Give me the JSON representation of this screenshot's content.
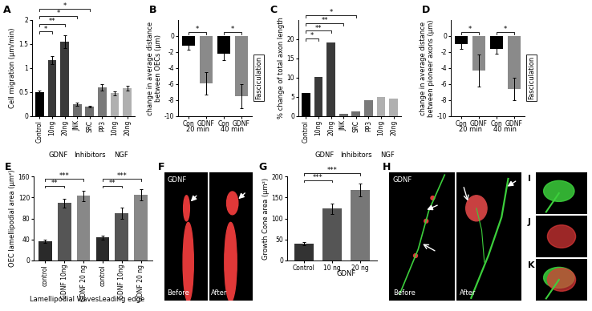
{
  "chart_data": [
    {
      "panel": "A",
      "type": "bar",
      "ylabel": "Cell migration (µm/min)",
      "categories": [
        "Control",
        "10ng",
        "20ng",
        "JNK",
        "SRC",
        "PP3",
        "10ng",
        "20ng"
      ],
      "values": [
        0.5,
        1.17,
        1.55,
        0.25,
        0.2,
        0.6,
        0.48,
        0.58
      ],
      "errors": [
        0.03,
        0.08,
        0.13,
        0.04,
        0.02,
        0.06,
        0.04,
        0.05
      ],
      "colors": [
        "#000000",
        "#3a3a3a",
        "#3a3a3a",
        "#6e6e6e",
        "#6e6e6e",
        "#7a7a7a",
        "#b0b0b0",
        "#b0b0b0"
      ],
      "ylim": [
        0,
        2
      ],
      "yticks": [
        0,
        0.5,
        1,
        1.5,
        2
      ],
      "groups": [
        {
          "label": "GDNF",
          "from": 1,
          "to": 2
        },
        {
          "label": "Inhibitors",
          "from": 3,
          "to": 5
        },
        {
          "label": "NGF",
          "from": 6,
          "to": 7
        }
      ],
      "significance": [
        {
          "from": 0,
          "to": 1,
          "label": "*"
        },
        {
          "from": 0,
          "to": 2,
          "label": "**"
        },
        {
          "from": 0,
          "to": 3,
          "label": "*"
        },
        {
          "from": 0,
          "to": 4,
          "label": "*"
        }
      ]
    },
    {
      "panel": "B",
      "type": "bar",
      "ylabel": "change in average distance\nbetween OECs (µm)",
      "categories": [
        "Con",
        "GDNF",
        "Con",
        "GDNF"
      ],
      "values": [
        -1.2,
        -5.9,
        -2.2,
        -7.5
      ],
      "errors": [
        0.5,
        1.4,
        0.8,
        1.5
      ],
      "colors": [
        "#000000",
        "#8a8a8a",
        "#000000",
        "#8a8a8a"
      ],
      "ylim": [
        -10,
        2
      ],
      "yticks": [
        -10,
        -8,
        -6,
        -4,
        -2,
        0
      ],
      "groups": [
        {
          "label": "20 min",
          "from": 0,
          "to": 1
        },
        {
          "label": "40 min",
          "from": 2,
          "to": 3
        }
      ],
      "significance": [
        {
          "from": 0,
          "to": 1,
          "label": "*"
        },
        {
          "from": 2,
          "to": 3,
          "label": "*"
        }
      ],
      "annotations": [
        "Fasciculation"
      ]
    },
    {
      "panel": "C",
      "type": "bar",
      "ylabel": "% change of total axon length",
      "categories": [
        "Control",
        "10ng",
        "20ng",
        "JNK",
        "SRC",
        "PP3",
        "10ng",
        "20ng"
      ],
      "values": [
        6,
        10.2,
        19.2,
        0.7,
        1.3,
        4.2,
        5.1,
        4.5
      ],
      "colors": [
        "#000000",
        "#3a3a3a",
        "#3a3a3a",
        "#6e6e6e",
        "#6e6e6e",
        "#7a7a7a",
        "#b0b0b0",
        "#b0b0b0"
      ],
      "ylim": [
        0,
        25
      ],
      "yticks": [
        0,
        5,
        10,
        15,
        20
      ],
      "groups": [
        {
          "label": "GDNF",
          "from": 1,
          "to": 2
        },
        {
          "label": "Inhibitors",
          "from": 3,
          "to": 5
        },
        {
          "label": "NGF",
          "from": 6,
          "to": 7
        }
      ],
      "significance": [
        {
          "from": 0,
          "to": 1,
          "label": "*"
        },
        {
          "from": 0,
          "to": 2,
          "label": "**"
        },
        {
          "from": 0,
          "to": 3,
          "label": "**"
        },
        {
          "from": 0,
          "to": 4,
          "label": "*"
        }
      ]
    },
    {
      "panel": "D",
      "type": "bar",
      "ylabel": "change in average distance\nbetween pioneer axons (µm)",
      "categories": [
        "Con",
        "GDNF",
        "Con",
        "GDNF"
      ],
      "values": [
        -1.0,
        -4.3,
        -1.6,
        -6.6
      ],
      "errors": [
        0.6,
        2.0,
        0.6,
        1.4
      ],
      "colors": [
        "#000000",
        "#8a8a8a",
        "#000000",
        "#8a8a8a"
      ],
      "ylim": [
        -10,
        2
      ],
      "yticks": [
        -10,
        -8,
        -6,
        -4,
        -2,
        0
      ],
      "groups": [
        {
          "label": "20 min",
          "from": 0,
          "to": 1
        },
        {
          "label": "40 min",
          "from": 2,
          "to": 3
        }
      ],
      "significance": [
        {
          "from": 0,
          "to": 1,
          "label": "*"
        },
        {
          "from": 2,
          "to": 3,
          "label": "*"
        }
      ],
      "annotations": [
        "Fasciculation"
      ]
    },
    {
      "panel": "E",
      "type": "bar",
      "ylabel": "OEC lamellipodial area (µm²)",
      "categories": [
        "control",
        "GDNF 10ng",
        "GDNF 20 ng",
        "control",
        "GDNF 10ng",
        "GDNF 20 ng"
      ],
      "values": [
        36,
        109,
        123,
        44,
        90,
        125
      ],
      "errors": [
        3,
        8,
        10,
        4,
        10,
        11
      ],
      "colors": [
        "#2a2a2a",
        "#555555",
        "#888888",
        "#2a2a2a",
        "#555555",
        "#888888"
      ],
      "ylim": [
        0,
        160
      ],
      "yticks": [
        0,
        40,
        80,
        120,
        160
      ],
      "groups": [
        {
          "label": "Lamellipodial Waves",
          "from": 0,
          "to": 2
        },
        {
          "label": "Leading edge",
          "from": 3,
          "to": 5
        }
      ],
      "significance": [
        {
          "from": 0,
          "to": 1,
          "label": "**"
        },
        {
          "from": 0,
          "to": 2,
          "label": "***"
        },
        {
          "from": 3,
          "to": 4,
          "label": "**"
        },
        {
          "from": 3,
          "to": 5,
          "label": "***"
        }
      ]
    },
    {
      "panel": "G",
      "type": "bar",
      "ylabel": "Growth Cone area (µm²)",
      "categories": [
        "Control",
        "10 ng",
        "20 ng"
      ],
      "values": [
        40,
        123,
        168
      ],
      "errors": [
        3,
        12,
        15
      ],
      "colors": [
        "#333333",
        "#555555",
        "#777777"
      ],
      "ylim": [
        0,
        200
      ],
      "yticks": [
        0,
        50,
        100,
        150,
        200
      ],
      "groups": [
        {
          "label": "GDNF",
          "from": 1,
          "to": 2
        }
      ],
      "significance": [
        {
          "from": 0,
          "to": 1,
          "label": "***"
        },
        {
          "from": 0,
          "to": 2,
          "label": "***"
        }
      ]
    }
  ],
  "images": [
    {
      "panel": "F",
      "title": "GDNF",
      "before": "Before",
      "after": "After"
    },
    {
      "panel": "H",
      "title": "GDNF",
      "before": "Before",
      "after": "After"
    },
    {
      "panel": "I"
    },
    {
      "panel": "J"
    },
    {
      "panel": "K"
    }
  ]
}
